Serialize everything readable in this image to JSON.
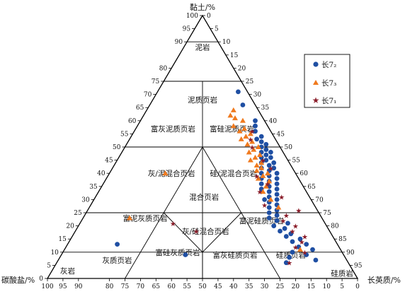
{
  "chart_data": {
    "type": "scatter",
    "ternary": true,
    "axes": {
      "top": {
        "label": "黏土/%"
      },
      "left": {
        "label": "碳酸盐/%"
      },
      "right": {
        "label": "长英质/%"
      }
    },
    "ticks": {
      "bottom": [
        "100",
        "95",
        "90",
        "80",
        "75",
        "70",
        "65",
        "60",
        "55",
        "50",
        "45",
        "40",
        "35",
        "30",
        "25",
        "20",
        "15",
        "10",
        "5",
        "0"
      ],
      "bottom_values": [
        100,
        95,
        90,
        80,
        75,
        70,
        65,
        60,
        55,
        50,
        45,
        40,
        35,
        30,
        25,
        20,
        15,
        10,
        5,
        0
      ],
      "left": [
        "0",
        "5",
        "10",
        "15",
        "20",
        "25",
        "30",
        "35",
        "40",
        "45",
        "50",
        "55",
        "60",
        "65",
        "70",
        "75",
        "80",
        "90",
        "95",
        "100"
      ],
      "left_values": [
        0,
        5,
        10,
        15,
        20,
        25,
        30,
        35,
        40,
        45,
        50,
        55,
        60,
        65,
        70,
        75,
        80,
        90,
        95,
        100
      ],
      "right": [
        "0",
        "5",
        "10",
        "15",
        "20",
        "25",
        "30",
        "35",
        "40",
        "45",
        "50",
        "55",
        "60",
        "65",
        "70",
        "75",
        "80",
        "85",
        "90",
        "95"
      ],
      "right_values": [
        0,
        5,
        10,
        15,
        20,
        25,
        30,
        35,
        40,
        45,
        50,
        55,
        60,
        65,
        70,
        75,
        80,
        85,
        90,
        95
      ]
    },
    "regions": [
      {
        "label": "泥岩",
        "pos": [
          88,
          6,
          6
        ]
      },
      {
        "label": "泥质页岩",
        "pos": [
          68,
          16,
          16
        ]
      },
      {
        "label": "富灰泥质页岩",
        "pos": [
          57,
          31,
          12
        ]
      },
      {
        "label": "富硅泥质页岩",
        "pos": [
          57,
          12,
          31
        ]
      },
      {
        "label": "灰/泥混合页岩",
        "pos": [
          40,
          40,
          20
        ]
      },
      {
        "label": "硅/泥混合页岩",
        "pos": [
          40,
          20,
          40
        ]
      },
      {
        "label": "混合页岩",
        "pos": [
          31,
          34,
          35
        ]
      },
      {
        "label": "富泥灰质页岩",
        "pos": [
          23,
          57,
          20
        ]
      },
      {
        "label": "灰/硅混合页岩",
        "pos": [
          18,
          40,
          42
        ]
      },
      {
        "label": "富泥硅质页岩",
        "pos": [
          22,
          20,
          58
        ]
      },
      {
        "label": "灰质页岩",
        "pos": [
          7,
          74,
          19
        ]
      },
      {
        "label": "富硅灰质页岩",
        "pos": [
          10,
          53,
          37
        ]
      },
      {
        "label": "富灰硅质页岩",
        "pos": [
          9,
          35,
          56
        ]
      },
      {
        "label": "硅质页岩",
        "pos": [
          9,
          17,
          74
        ]
      },
      {
        "label": "灰岩",
        "pos": [
          3,
          92,
          5
        ]
      },
      {
        "label": "硅质岩",
        "pos": [
          2,
          4,
          94
        ]
      }
    ],
    "series": [
      {
        "name": "长7₂",
        "marker": "circle",
        "color": "#1f4fa3",
        "points": [
          [
            71,
            3,
            26
          ],
          [
            66,
            4,
            30
          ],
          [
            60,
            3,
            37
          ],
          [
            58,
            4,
            38
          ],
          [
            56,
            5,
            39
          ],
          [
            54,
            4,
            42
          ],
          [
            53,
            6,
            41
          ],
          [
            52,
            5,
            43
          ],
          [
            51,
            4,
            45
          ],
          [
            50,
            6,
            44
          ],
          [
            49,
            5,
            46
          ],
          [
            48,
            7,
            45
          ],
          [
            48,
            4,
            48
          ],
          [
            47,
            6,
            47
          ],
          [
            46,
            8,
            46
          ],
          [
            46,
            5,
            49
          ],
          [
            45,
            7,
            48
          ],
          [
            44,
            5,
            51
          ],
          [
            44,
            9,
            47
          ],
          [
            43,
            7,
            50
          ],
          [
            42,
            6,
            52
          ],
          [
            42,
            10,
            48
          ],
          [
            41,
            8,
            51
          ],
          [
            40,
            6,
            54
          ],
          [
            40,
            11,
            49
          ],
          [
            39,
            9,
            52
          ],
          [
            38,
            7,
            55
          ],
          [
            38,
            12,
            50
          ],
          [
            37,
            10,
            53
          ],
          [
            36,
            8,
            56
          ],
          [
            36,
            13,
            51
          ],
          [
            35,
            11,
            54
          ],
          [
            34,
            9,
            57
          ],
          [
            34,
            14,
            52
          ],
          [
            33,
            12,
            55
          ],
          [
            32,
            10,
            58
          ],
          [
            31,
            13,
            56
          ],
          [
            30,
            11,
            59
          ],
          [
            30,
            15,
            55
          ],
          [
            29,
            14,
            57
          ],
          [
            28,
            12,
            60
          ],
          [
            27,
            15,
            58
          ],
          [
            26,
            13,
            61
          ],
          [
            25,
            16,
            59
          ],
          [
            24,
            14,
            62
          ],
          [
            23,
            17,
            60
          ],
          [
            22,
            15,
            63
          ],
          [
            21,
            12,
            67
          ],
          [
            20,
            17,
            63
          ],
          [
            19,
            14,
            67
          ],
          [
            18,
            16,
            66
          ],
          [
            17,
            13,
            70
          ],
          [
            16,
            15,
            69
          ],
          [
            15,
            11,
            74
          ],
          [
            14,
            14,
            72
          ],
          [
            13,
            10,
            77
          ],
          [
            12,
            13,
            75
          ],
          [
            11,
            9,
            80
          ],
          [
            10,
            16,
            74
          ],
          [
            9,
            12,
            79
          ],
          [
            8,
            18,
            74
          ],
          [
            7,
            10,
            83
          ],
          [
            6,
            20,
            74
          ],
          [
            13,
            71,
            16
          ],
          [
            9,
            51,
            40
          ]
        ]
      },
      {
        "name": "长7₃",
        "marker": "triangle",
        "color": "#f07a1e",
        "points": [
          [
            64,
            8,
            28
          ],
          [
            62,
            10,
            28
          ],
          [
            61,
            9,
            30
          ],
          [
            60,
            7,
            33
          ],
          [
            58,
            11,
            31
          ],
          [
            57,
            8,
            35
          ],
          [
            56,
            10,
            34
          ],
          [
            55,
            7,
            38
          ],
          [
            54,
            9,
            37
          ],
          [
            53,
            11,
            36
          ],
          [
            52,
            8,
            40
          ],
          [
            51,
            10,
            39
          ],
          [
            50,
            7,
            43
          ],
          [
            49,
            9,
            42
          ],
          [
            48,
            11,
            41
          ],
          [
            47,
            8,
            45
          ],
          [
            46,
            10,
            44
          ],
          [
            45,
            12,
            43
          ],
          [
            44,
            9,
            47
          ],
          [
            43,
            11,
            46
          ],
          [
            42,
            10,
            48
          ],
          [
            41,
            12,
            47
          ],
          [
            40,
            9,
            51
          ],
          [
            39,
            11,
            50
          ],
          [
            38,
            13,
            49
          ],
          [
            37,
            10,
            53
          ],
          [
            35,
            12,
            53
          ],
          [
            33,
            14,
            53
          ],
          [
            30,
            13,
            57
          ],
          [
            27,
            12,
            61
          ],
          [
            40,
            42,
            18
          ],
          [
            23,
            62,
            15
          ],
          [
            11,
            13,
            76
          ]
        ]
      },
      {
        "name": "长7₁",
        "marker": "star",
        "color": "#8b1e2b",
        "points": [
          [
            56,
            6,
            38
          ],
          [
            53,
            8,
            39
          ],
          [
            50,
            9,
            41
          ],
          [
            45,
            8,
            47
          ],
          [
            42,
            7,
            51
          ],
          [
            39,
            13,
            48
          ],
          [
            36,
            11,
            53
          ],
          [
            33,
            15,
            52
          ],
          [
            31,
            9,
            60
          ],
          [
            28,
            16,
            56
          ],
          [
            26,
            6,
            68
          ],
          [
            24,
            11,
            65
          ],
          [
            22,
            13,
            65
          ],
          [
            20,
            10,
            70
          ],
          [
            18,
            12,
            70
          ],
          [
            16,
            9,
            75
          ],
          [
            14,
            11,
            75
          ],
          [
            12,
            14,
            74
          ],
          [
            10,
            12,
            78
          ],
          [
            21,
            49,
            30
          ],
          [
            18,
            43,
            39
          ],
          [
            6,
            19,
            75
          ]
        ]
      }
    ],
    "legend": {
      "placement": "top-right",
      "entries": [
        "长7₂",
        "长7₃",
        "长7₁"
      ]
    }
  }
}
